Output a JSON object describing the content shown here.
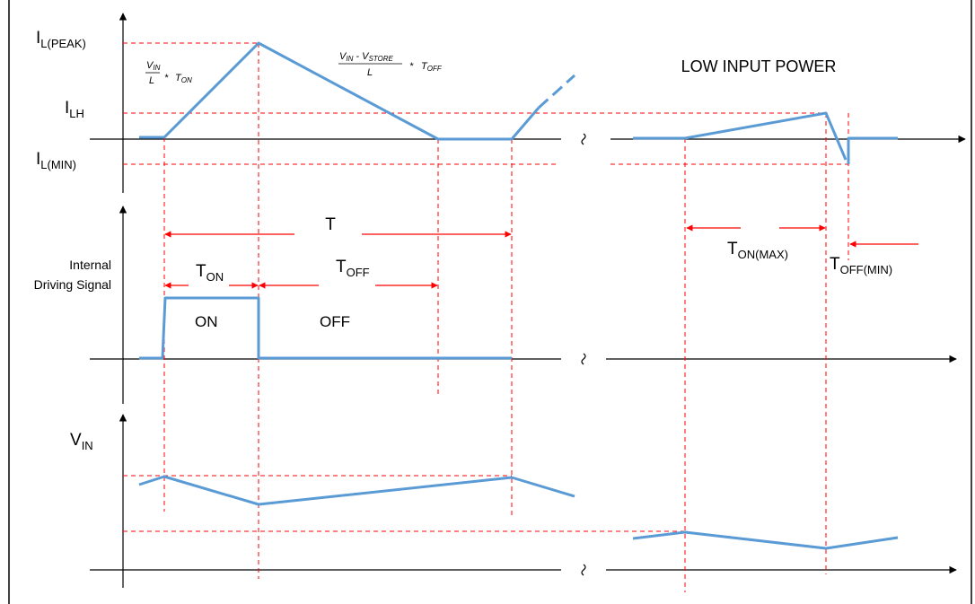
{
  "labels": {
    "i_peak": {
      "main": "I",
      "sub": "L(PEAK)"
    },
    "i_lh": {
      "main": "I",
      "sub": "LH"
    },
    "i_min": {
      "main": "I",
      "sub": "L(MIN)"
    },
    "low_input_power": "LOW INPUT POWER",
    "period": "T",
    "t_on": {
      "main": "T",
      "sub": "ON"
    },
    "t_off": {
      "main": "T",
      "sub": "OFF"
    },
    "t_on_max": {
      "main": "T",
      "sub": "ON(MAX)"
    },
    "t_off_min": {
      "main": "T",
      "sub": "OFF(MIN)"
    },
    "signal_label": [
      "Internal",
      "Driving Signal"
    ],
    "on": "ON",
    "off": "OFF",
    "v_in": {
      "main": "V",
      "sub": "IN"
    }
  },
  "formulas": {
    "rise": {
      "num_main": "V",
      "num_sub": "IN",
      "den": "L",
      "times": "*",
      "t_main": "T",
      "t_sub": "ON"
    },
    "fall": {
      "num_main": "V",
      "num_sub": "IN",
      "minus": " - ",
      "num2_main": "V",
      "num2_sub": "STORE",
      "den": "L",
      "times": "*",
      "t_main": "T",
      "t_sub": "OFF"
    }
  }
}
